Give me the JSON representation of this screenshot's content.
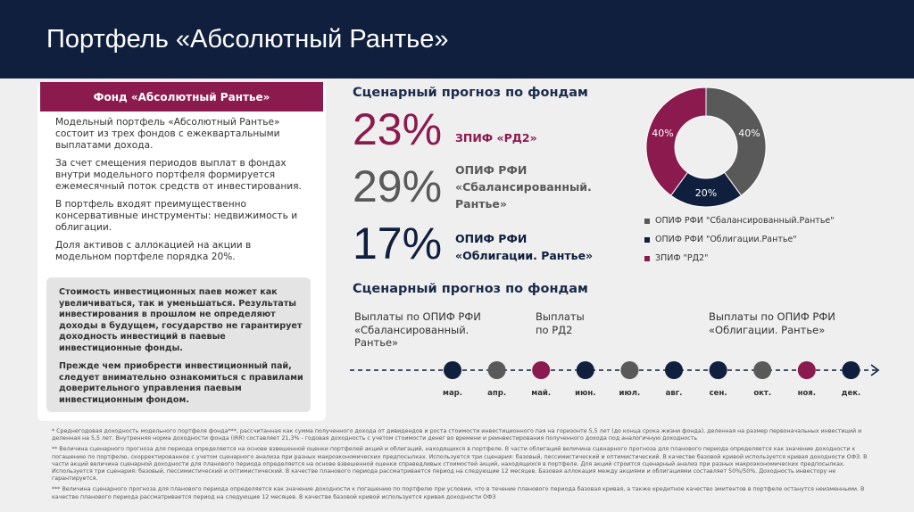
{
  "header": {
    "title": "Портфель «Абсолютный Рантье»"
  },
  "fund_panel": {
    "title": "Фонд «Абсолютный Рантье»",
    "paragraphs": [
      "Модельный портфель «Абсолютный Рантье» состоит из трех фондов с ежеквартальными выплатами дохода.",
      "За счет смещения периодов выплат в фондах внутри модельного портфеля формируется ежемесячный поток средств от инвестирования.",
      "В портфель входят преимущественно консервативные инструменты: недвижимость и облигации.",
      "Доля активов с аллокацией на акции в модельном портфеле порядка 20%."
    ],
    "warning": [
      "Стоимость инвестиционных паев может как увеличиваться, так и уменьшаться. Результаты инвестирования в прошлом не определяют доходы в будущем, государство не гарантирует доходность инвестиций в паевые инвестиционные фонды.",
      "Прежде чем приобрести инвестиционный пай, следует внимательно ознакомиться с правилами доверительного управления паевым инвестиционным фондом."
    ]
  },
  "forecast": {
    "title": "Сценарный прогноз по фондам",
    "items": [
      {
        "value": "23%",
        "label": [
          "ЗПИФ «РД2»"
        ]
      },
      {
        "value": "29%",
        "label": [
          "ОПИФ РФИ",
          "«Сбалансированный.",
          "Рантье»"
        ]
      },
      {
        "value": "17%",
        "label": [
          "ОПИФ РФИ",
          "«Облигации. Рантье»"
        ]
      }
    ]
  },
  "chart_data": {
    "type": "pie",
    "categories": [
      "ОПИФ РФИ \"Сбалансированный.Рантье\"",
      "ОПИФ РФИ \"Облигации.Рантье\"",
      "ЗПИФ \"РД2\""
    ],
    "values": [
      40,
      20,
      40
    ],
    "value_labels": [
      "40%",
      "20%",
      "40%"
    ],
    "colors": [
      "#595959",
      "#0f1f3d",
      "#8b1a4e"
    ],
    "donut": true,
    "legend": "bottom"
  },
  "schedule": {
    "title": "Сценарный прогноз по фондам",
    "callouts": [
      [
        "Выплаты по ОПИФ РФИ",
        "«Сбалансированный.",
        "Рантье»"
      ],
      [
        "Выплаты",
        "по РД2"
      ],
      [
        "Выплаты по ОПИФ РФИ",
        "«Облигации. Рантье»"
      ]
    ],
    "months": [
      "мар.",
      "апр.",
      "май.",
      "июн.",
      "июл.",
      "авг.",
      "сен.",
      "окт.",
      "ноя.",
      "дек."
    ],
    "dot_colors": [
      "#0f1f3d",
      "#595959",
      "#8b1a4e",
      "#0f1f3d",
      "#595959",
      "#0f1f3d",
      "#0f1f3d",
      "#595959",
      "#8b1a4e",
      "#0f1f3d"
    ]
  },
  "footnotes": [
    "* Среднегодовая доходность модельного портфеля фонда***, рассчитанная как сумма полученного дохода от дивидендов и роста стоимости инвестиционного пая на горизонте 5,5 лет (до конца срока жизни фонда), деленная на размер первоначальных инвестиций и деленная на 5,5 лет. Внутренняя норма доходности фонда (IRR) составляет 21,3% - годовая доходность с учетом стоимости денег во времени и реинвестирования полученного дохода под аналогичную доходность",
    "** Величина сценарного прогноза для периода определяется на основе взвешенной оценки портфелей акций и облигаций, находящихся в портфеле. В части облигаций величина сценарного прогноза для планового периода определяется как значение доходности к погашению по портфелю, скорректированное с учетом сценарного анализа при разных макроэкономических предпосылках. Используется три сценария: базовый, пессимистический и оптимистический. В качестве базовой кривой используется кривая доходности ОФЗ. В части акций величина сценарной доходности для планового периода определяется на основе взвешенной оценки справедливых стоимостей акций, находящихся в портфеле. Для акций строится сценарный анализ при разных макроэкономических предпосылках. Используется три сценария: базовый, пессимистический и оптимистический. В качестве планового периода рассматривается период на следующие 12 месяцев. Базовая аллокация между акциями и облигациями составляет 50%/50%. Доходность инвестору не гарантируется.",
    "*** Величина сценарного прогноза для планового периода определяется как значение доходности к погашению по портфелю при условии, что в течение планового периода базовая кривая, а также кредитное качество эмитентов в портфеле останутся неизменными. В качестве планового периода рассматривается период на следующие 12 месяцев. В качестве базовой кривой используется кривая доходности ОФЗ"
  ]
}
